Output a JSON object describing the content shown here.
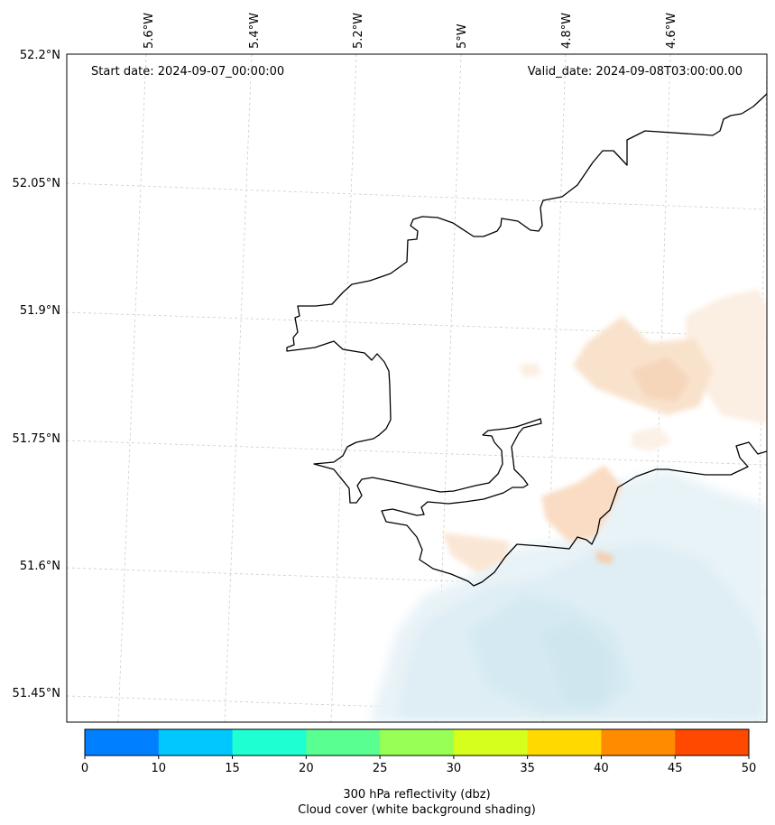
{
  "map": {
    "start_date": "Start date: 2024-09-07_00:00:00",
    "valid_date": "Valid_date: 2024-09-08T03:00:00.00",
    "lon_labels": [
      "5.6°W",
      "5.4°W",
      "5.2°W",
      "5°W",
      "4.8°W",
      "4.6°W"
    ],
    "lat_labels": [
      "52.2°N",
      "52.05°N",
      "51.9°N",
      "51.75°N",
      "51.6°N",
      "51.45°N"
    ],
    "gridlines": true,
    "coastline_color": "#000000",
    "cloud_shading_color": "#e3f1f6",
    "reflectivity_light_color": "#f9dcc3"
  },
  "colorbar": {
    "ticks": [
      "0",
      "10",
      "15",
      "20",
      "25",
      "30",
      "35",
      "40",
      "45",
      "50"
    ],
    "colors": [
      "#0080ff",
      "#00c8ff",
      "#1effd2",
      "#5aff91",
      "#98ff55",
      "#d7ff1e",
      "#ffd900",
      "#ff8c00",
      "#ff4800"
    ],
    "label_line1": "300 hPa reflectivity (dbz)",
    "label_line2": "Cloud cover (white background shading)"
  }
}
